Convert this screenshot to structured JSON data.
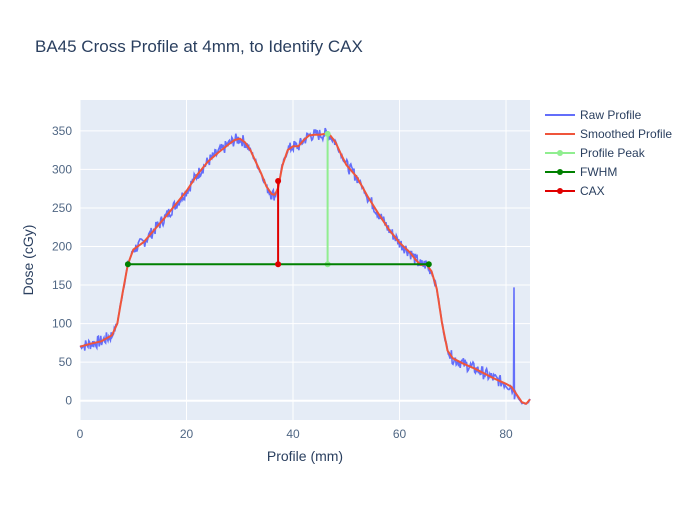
{
  "chart_data": {
    "type": "line",
    "title": "BA45 Cross Profile at 4mm, to Identify CAX",
    "xlabel": "Profile (mm)",
    "ylabel": "Dose (cGy)",
    "xlim": [
      0,
      84.5
    ],
    "ylim": [
      -25,
      390
    ],
    "xticks": [
      0,
      20,
      40,
      60,
      80
    ],
    "yticks": [
      0,
      50,
      100,
      150,
      200,
      250,
      300,
      350
    ],
    "grid": true,
    "legend_position": "right",
    "plot_background": "#e5ecf6",
    "smoothed_profile": {
      "x": [
        0,
        2,
        4,
        6,
        7,
        8,
        9,
        10,
        12,
        14,
        16,
        18,
        20,
        22,
        24,
        26,
        28,
        29,
        30,
        31,
        32,
        33,
        34,
        35,
        36,
        36.6,
        37.2,
        38,
        39,
        40,
        41,
        42,
        43,
        44,
        45,
        46,
        47,
        48,
        49,
        50,
        52,
        54,
        56,
        58,
        60,
        62,
        63,
        64,
        65,
        66,
        67,
        68,
        69,
        70,
        72,
        74,
        76,
        78,
        80,
        81,
        82,
        83,
        83.8,
        84.5
      ],
      "y": [
        70,
        74,
        77,
        85,
        100,
        140,
        177,
        196,
        206,
        222,
        238,
        255,
        272,
        293,
        310,
        322,
        333,
        338,
        340,
        335,
        325,
        310,
        295,
        278,
        268,
        267,
        276,
        305,
        325,
        330,
        330,
        338,
        344,
        345,
        345,
        346,
        344,
        335,
        320,
        306,
        290,
        265,
        243,
        222,
        205,
        192,
        183,
        176,
        177,
        168,
        145,
        100,
        65,
        55,
        48,
        42,
        35,
        28,
        22,
        18,
        8,
        -2,
        -4,
        2
      ]
    },
    "raw_profile": {
      "base_on": "smoothed_profile",
      "noise_amplitude": 8,
      "spike": {
        "x": 81.5,
        "y": 147
      }
    },
    "profile_peak": {
      "x": [
        46.5,
        46.5
      ],
      "y": [
        177,
        346
      ]
    },
    "fwhm": {
      "x": [
        9,
        65.5
      ],
      "y": [
        177,
        177
      ]
    },
    "cax": {
      "x": [
        37.2,
        37.2
      ],
      "y": [
        177,
        285
      ]
    },
    "series": [
      {
        "name": "Raw Profile",
        "color": "#636efa",
        "marker": false
      },
      {
        "name": "Smoothed Profile",
        "color": "#ef553b",
        "marker": false
      },
      {
        "name": "Profile Peak",
        "color": "#90ee90",
        "marker": true
      },
      {
        "name": "FWHM",
        "color": "#008000",
        "marker": true
      },
      {
        "name": "CAX",
        "color": "#e00000",
        "marker": true
      }
    ]
  }
}
